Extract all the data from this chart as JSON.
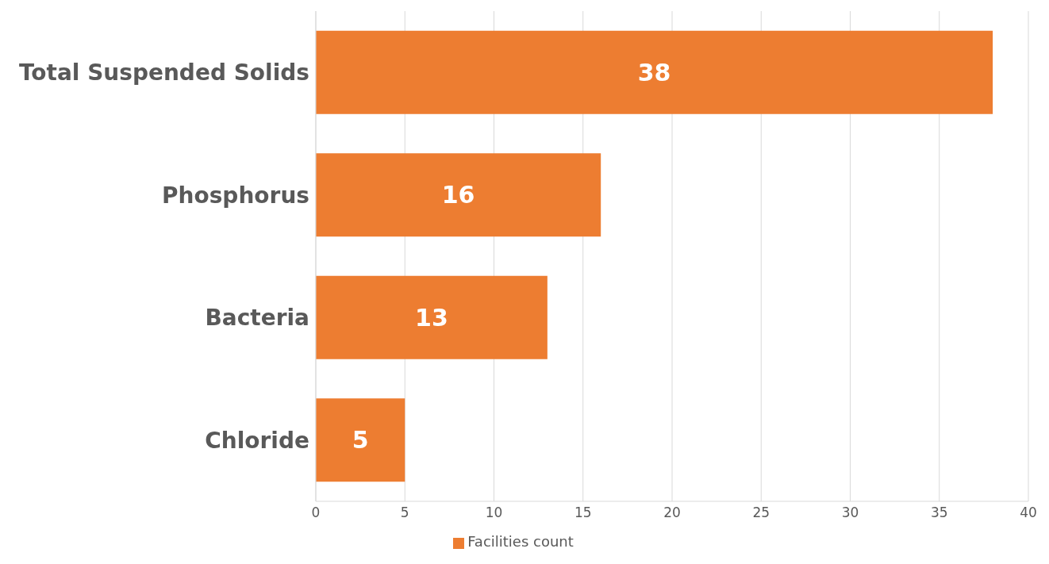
{
  "chart_data": {
    "type": "bar",
    "orientation": "horizontal",
    "categories": [
      "Total Suspended Solids",
      "Phosphorus",
      "Bacteria",
      "Chloride"
    ],
    "series": [
      {
        "name": "Facilities count",
        "color": "#ed7d31",
        "values": [
          38,
          16,
          13,
          5
        ]
      }
    ],
    "xlim": [
      0,
      40
    ],
    "xticks": [
      0,
      5,
      10,
      15,
      20,
      25,
      30,
      35,
      40
    ],
    "grid": "x",
    "legend": "bottom",
    "data_labels": true
  }
}
